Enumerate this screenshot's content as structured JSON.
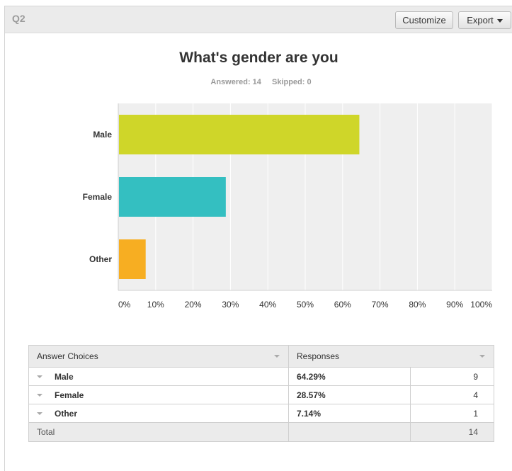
{
  "header": {
    "question_number": "Q2",
    "customize_label": "Customize",
    "export_label": "Export"
  },
  "title": "What's gender are you",
  "stats": {
    "answered": "Answered: 14",
    "skipped": "Skipped: 0"
  },
  "chart_data": {
    "type": "bar",
    "orientation": "horizontal",
    "categories": [
      "Male",
      "Female",
      "Other"
    ],
    "values": [
      64.29,
      28.57,
      7.14
    ],
    "colors": [
      "#cfd629",
      "#34bfc1",
      "#f7ae22"
    ],
    "xlim": [
      0,
      100
    ],
    "x_ticks": [
      "0%",
      "10%",
      "20%",
      "30%",
      "40%",
      "50%",
      "60%",
      "70%",
      "80%",
      "90%",
      "100%"
    ],
    "grid": true,
    "background": "#efefef"
  },
  "table": {
    "headers": [
      "Answer Choices",
      "Responses"
    ],
    "rows": [
      {
        "choice": "Male",
        "percent": "64.29%",
        "count": "9"
      },
      {
        "choice": "Female",
        "percent": "28.57%",
        "count": "4"
      },
      {
        "choice": "Other",
        "percent": "7.14%",
        "count": "1"
      }
    ],
    "total_label": "Total",
    "total_count": "14"
  }
}
